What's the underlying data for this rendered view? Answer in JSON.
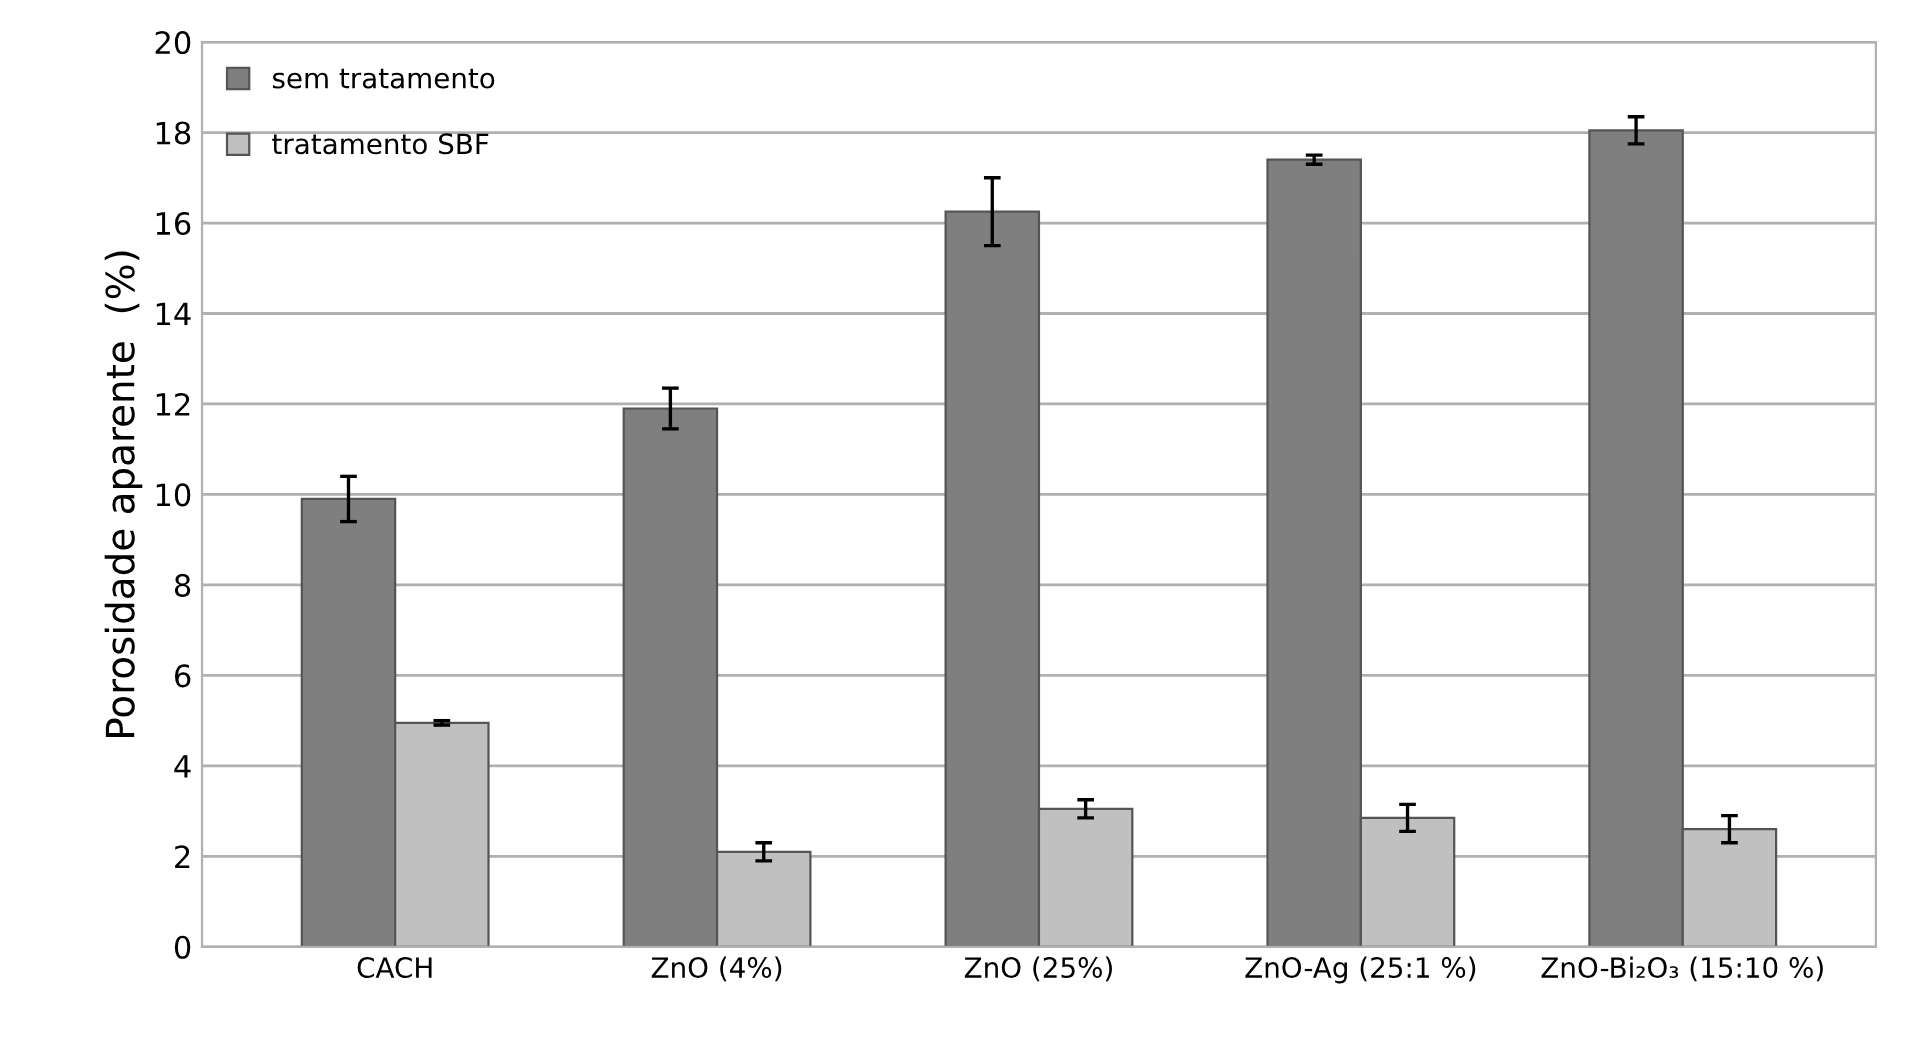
{
  "chart_data": {
    "type": "bar",
    "ylabel": "Porosidade aparente  (%)",
    "categories": [
      "CACH",
      "ZnO (4%)",
      "ZnO (25%)",
      "ZnO-Ag (25:1 %)",
      "ZnO-Bi₂O₃ (15:10 %)"
    ],
    "series": [
      {
        "name": "sem tratamento",
        "color": "#7f7f7f",
        "values": [
          9.9,
          11.9,
          16.25,
          17.4,
          18.05
        ],
        "errors": [
          0.5,
          0.45,
          0.75,
          0.1,
          0.3
        ]
      },
      {
        "name": "tratamento SBF",
        "color": "#c0c0c0",
        "values": [
          4.95,
          2.1,
          3.05,
          2.85,
          2.6
        ],
        "errors": [
          0.05,
          0.2,
          0.2,
          0.3,
          0.3
        ]
      }
    ],
    "ylim": [
      0,
      20
    ],
    "yticks": [
      0,
      2,
      4,
      6,
      8,
      10,
      12,
      14,
      16,
      18,
      20
    ],
    "grid": "y",
    "legend": "top left"
  }
}
